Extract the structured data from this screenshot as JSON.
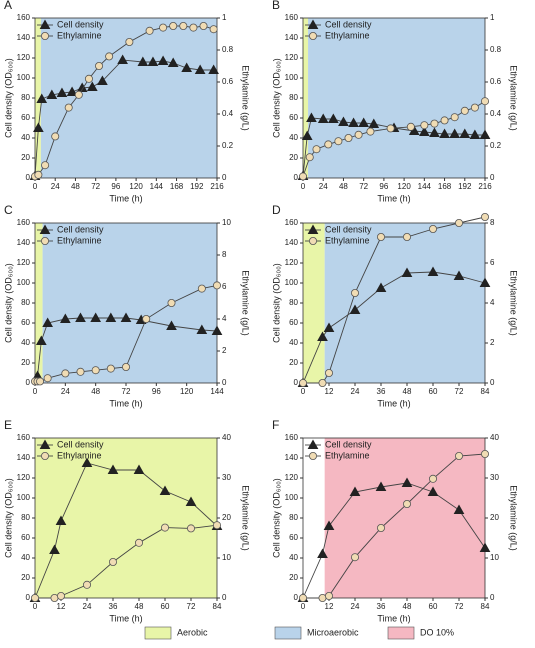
{
  "chart_data": [
    {
      "type": "line",
      "panel": "A",
      "xlabel": "Time (h)",
      "ylabel": "Cell density (OD₆₀₀)",
      "y2label": "Ethylamine (g/L)",
      "xlim": [
        0,
        216
      ],
      "xticks": [
        0,
        24,
        48,
        72,
        96,
        120,
        144,
        168,
        192,
        216
      ],
      "ylim": [
        0,
        160
      ],
      "yticks": [
        0,
        20,
        40,
        60,
        80,
        100,
        120,
        140,
        160
      ],
      "y2lim": [
        0,
        1
      ],
      "y2ticks": [
        0,
        0.2,
        0.4,
        0.6,
        0.8,
        1
      ],
      "regions": [
        {
          "from": 0,
          "to": 7,
          "color": "#e8f5a8"
        },
        {
          "from": 7,
          "to": 216,
          "color": "#b9d3ea"
        }
      ],
      "series": [
        {
          "name": "Cell density",
          "color": "#222222",
          "marker": "triangle",
          "axis": "y",
          "x": [
            0,
            4,
            8,
            20,
            32,
            44,
            56,
            68,
            80,
            104,
            128,
            140,
            152,
            164,
            180,
            196,
            212
          ],
          "values": [
            2,
            50,
            79,
            83,
            85,
            86,
            90,
            91,
            97,
            118,
            116,
            116,
            117,
            115,
            110,
            108,
            108
          ]
        },
        {
          "name": "Ethylamine",
          "color": "#f0dcb4",
          "marker": "circle",
          "axis": "y2",
          "x": [
            0,
            4,
            12,
            24,
            40,
            52,
            64,
            76,
            88,
            112,
            136,
            152,
            164,
            176,
            188,
            200,
            212
          ],
          "values": [
            0.01,
            0.02,
            0.08,
            0.26,
            0.44,
            0.52,
            0.62,
            0.7,
            0.76,
            0.85,
            0.92,
            0.94,
            0.95,
            0.95,
            0.94,
            0.95,
            0.93
          ]
        }
      ]
    },
    {
      "type": "line",
      "panel": "B",
      "xlabel": "Time (h)",
      "ylabel": "Cell density (OD₆₀₀)",
      "y2label": "Ethylamine (g/L)",
      "xlim": [
        0,
        216
      ],
      "xticks": [
        0,
        24,
        48,
        72,
        96,
        120,
        144,
        168,
        192,
        216
      ],
      "ylim": [
        0,
        160
      ],
      "yticks": [
        0,
        20,
        40,
        60,
        80,
        100,
        120,
        140,
        160
      ],
      "y2lim": [
        0,
        1
      ],
      "y2ticks": [
        0,
        0.2,
        0.4,
        0.6,
        0.8,
        1
      ],
      "regions": [
        {
          "from": 0,
          "to": 6,
          "color": "#e8f5a8"
        },
        {
          "from": 6,
          "to": 216,
          "color": "#b9d3ea"
        }
      ],
      "series": [
        {
          "name": "Cell density",
          "color": "#222222",
          "marker": "triangle",
          "axis": "y",
          "x": [
            0,
            5,
            10,
            24,
            36,
            48,
            60,
            72,
            84,
            108,
            132,
            144,
            156,
            168,
            180,
            192,
            204,
            216
          ],
          "values": [
            2,
            42,
            60,
            59,
            59,
            56,
            55,
            55,
            54,
            50,
            47,
            46,
            45,
            44,
            44,
            44,
            43,
            43
          ]
        },
        {
          "name": "Ethylamine",
          "color": "#f0dcb4",
          "marker": "circle",
          "axis": "y2",
          "x": [
            0,
            8,
            16,
            30,
            42,
            54,
            66,
            80,
            104,
            128,
            144,
            156,
            168,
            180,
            192,
            204,
            216
          ],
          "values": [
            0.01,
            0.13,
            0.18,
            0.21,
            0.23,
            0.25,
            0.27,
            0.29,
            0.31,
            0.32,
            0.33,
            0.34,
            0.36,
            0.38,
            0.42,
            0.44,
            0.48
          ]
        }
      ]
    },
    {
      "type": "line",
      "panel": "C",
      "xlabel": "Time (h)",
      "ylabel": "Cell density (OD₆₀₀)",
      "y2label": "Ethylamine (g/L)",
      "xlim": [
        0,
        144
      ],
      "xticks": [
        0,
        24,
        48,
        72,
        96,
        120,
        144
      ],
      "ylim": [
        0,
        160
      ],
      "yticks": [
        0,
        20,
        40,
        60,
        80,
        100,
        120,
        140,
        160
      ],
      "y2lim": [
        0,
        10
      ],
      "y2ticks": [
        0,
        2,
        4,
        6,
        8,
        10
      ],
      "regions": [
        {
          "from": 0,
          "to": 6,
          "color": "#e8f5a8"
        },
        {
          "from": 6,
          "to": 144,
          "color": "#b9d3ea"
        }
      ],
      "series": [
        {
          "name": "Cell density",
          "color": "#222222",
          "marker": "triangle",
          "axis": "y",
          "x": [
            2,
            5,
            10,
            24,
            36,
            48,
            60,
            72,
            84,
            108,
            132,
            144
          ],
          "values": [
            7,
            42,
            60,
            64,
            65,
            65,
            65,
            65,
            63,
            57,
            53,
            52
          ]
        },
        {
          "name": "Ethylamine",
          "color": "#f0dcb4",
          "marker": "circle",
          "axis": "y2",
          "x": [
            0,
            2,
            4,
            10,
            24,
            36,
            48,
            60,
            72,
            88,
            108,
            132,
            144
          ],
          "values": [
            0.1,
            0.1,
            0.1,
            0.3,
            0.6,
            0.7,
            0.8,
            0.9,
            1.0,
            4.0,
            5.0,
            5.9,
            6.1
          ]
        }
      ]
    },
    {
      "type": "line",
      "panel": "D",
      "xlabel": "Time (h)",
      "ylabel": "Cell density (OD₆₀₀)",
      "y2label": "Ethylamine (g/L)",
      "xlim": [
        0,
        84
      ],
      "xticks": [
        0,
        12,
        24,
        36,
        48,
        60,
        72,
        84
      ],
      "ylim": [
        0,
        160
      ],
      "yticks": [
        0,
        20,
        40,
        60,
        80,
        100,
        120,
        140,
        160
      ],
      "y2lim": [
        0,
        8
      ],
      "y2ticks": [
        0,
        2,
        4,
        6,
        8
      ],
      "regions": [
        {
          "from": 0,
          "to": 10,
          "color": "#e8f5a8"
        },
        {
          "from": 10,
          "to": 84,
          "color": "#b9d3ea"
        }
      ],
      "series": [
        {
          "name": "Cell density",
          "color": "#222222",
          "marker": "triangle",
          "axis": "y",
          "x": [
            0,
            9,
            12,
            24,
            36,
            48,
            60,
            72,
            84
          ],
          "values": [
            0,
            46,
            55,
            73,
            95,
            110,
            111,
            107,
            100
          ]
        },
        {
          "name": "Ethylamine",
          "color": "#f0dcb4",
          "marker": "circle",
          "axis": "y2",
          "x": [
            0,
            9,
            12,
            24,
            36,
            48,
            60,
            72,
            84
          ],
          "values": [
            0,
            0,
            0.5,
            4.5,
            7.3,
            7.3,
            7.7,
            8.0,
            8.3
          ]
        }
      ]
    },
    {
      "type": "line",
      "panel": "E",
      "xlabel": "Time (h)",
      "ylabel": "Cell density (OD₆₀₀)",
      "y2label": "Ethylamine (g/L)",
      "xlim": [
        0,
        84
      ],
      "xticks": [
        0,
        12,
        24,
        36,
        48,
        60,
        72,
        84
      ],
      "ylim": [
        0,
        160
      ],
      "yticks": [
        0,
        20,
        40,
        60,
        80,
        100,
        120,
        140,
        160
      ],
      "y2lim": [
        0,
        40
      ],
      "y2ticks": [
        0,
        10,
        20,
        30,
        40
      ],
      "regions": [
        {
          "from": 0,
          "to": 84,
          "color": "#e8f5a8"
        }
      ],
      "series": [
        {
          "name": "Cell density",
          "color": "#222222",
          "marker": "triangle",
          "axis": "y",
          "x": [
            0,
            9,
            12,
            24,
            36,
            48,
            60,
            72,
            84
          ],
          "values": [
            0,
            48,
            77,
            135,
            128,
            128,
            107,
            96,
            72
          ]
        },
        {
          "name": "Ethylamine",
          "color": "#f0dcb4",
          "marker": "circle",
          "axis": "y2",
          "x": [
            0,
            9,
            12,
            24,
            36,
            48,
            60,
            72,
            84
          ],
          "values": [
            0,
            0,
            0.5,
            3.3,
            9.0,
            13.8,
            17.6,
            17.4,
            18.2
          ]
        }
      ]
    },
    {
      "type": "line",
      "panel": "F",
      "xlabel": "Time (h)",
      "ylabel": "Cell density (OD₆₀₀)",
      "y2label": "Ethylamine (g/L)",
      "xlim": [
        0,
        84
      ],
      "xticks": [
        0,
        12,
        24,
        36,
        48,
        60,
        72,
        84
      ],
      "ylim": [
        0,
        160
      ],
      "yticks": [
        0,
        20,
        40,
        60,
        80,
        100,
        120,
        140,
        160
      ],
      "y2lim": [
        0,
        40
      ],
      "y2ticks": [
        0,
        10,
        20,
        30,
        40
      ],
      "regions": [
        {
          "from": 10,
          "to": 84,
          "color": "#f5b8c2"
        }
      ],
      "series": [
        {
          "name": "Cell density",
          "color": "#222222",
          "marker": "triangle",
          "axis": "y",
          "x": [
            0,
            9,
            12,
            24,
            36,
            48,
            60,
            72,
            84
          ],
          "values": [
            0,
            44,
            72,
            106,
            111,
            115,
            106,
            88,
            50
          ]
        },
        {
          "name": "Ethylamine",
          "color": "#f0dcb4",
          "marker": "circle",
          "axis": "y2",
          "x": [
            0,
            9,
            12,
            24,
            36,
            48,
            60,
            72,
            84
          ],
          "values": [
            0,
            0,
            0.5,
            10.2,
            17.5,
            23.5,
            29.8,
            35.5,
            36
          ]
        }
      ]
    }
  ],
  "phase_legend": [
    {
      "label": "Aerobic",
      "color": "#e8f5a8"
    },
    {
      "label": "Microaerobic",
      "color": "#b9d3ea"
    },
    {
      "label": "DO 10%",
      "color": "#f5b8c2"
    }
  ]
}
